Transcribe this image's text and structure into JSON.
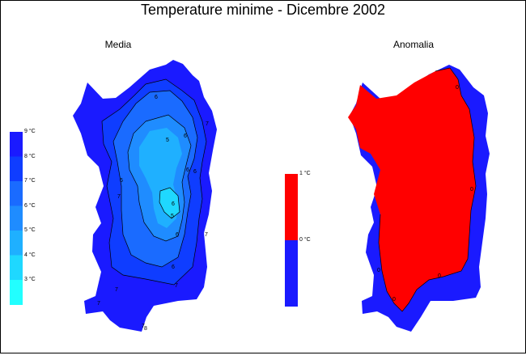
{
  "title": "Temperature minime - Dicembre 2002",
  "panels": {
    "left_title": "Media",
    "right_title": "Anomalia"
  },
  "legend_media": {
    "labels": [
      "9 °C",
      "8 °C",
      "7 °C",
      "6 °C",
      "5 °C",
      "4 °C",
      "3 °C"
    ],
    "colors": [
      "#1a1aff",
      "#0f3dff",
      "#1a6bff",
      "#1f8cff",
      "#1fb0ff",
      "#1fd8ff",
      "#22ffff"
    ]
  },
  "legend_anomalia": {
    "labels": [
      "1 °C",
      "0 °C"
    ],
    "colors": [
      "#ff0000",
      "#1a1aff"
    ]
  },
  "map_labels": {
    "media": [
      "6",
      "6",
      "7",
      "6",
      "7",
      "6",
      "7",
      "6",
      "5",
      "6",
      "6",
      "7",
      "7",
      "6",
      "7",
      "7",
      "5",
      "8"
    ],
    "anomalia": [
      "0",
      "0",
      "0",
      "0",
      "0"
    ]
  }
}
